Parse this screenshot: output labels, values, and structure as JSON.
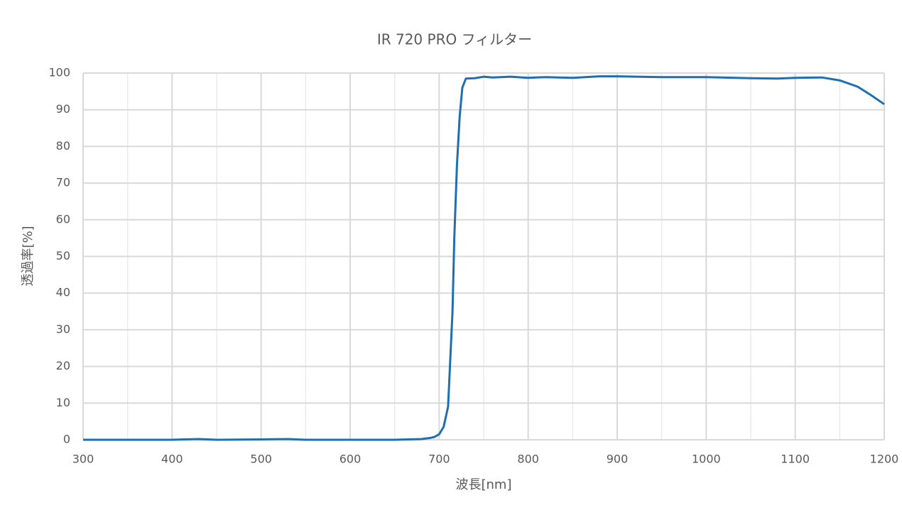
{
  "chart_data": {
    "type": "line",
    "title": "IR 720 PRO フィルター",
    "x_label": "波長[nm]",
    "y_label": "透過率[%]",
    "xlim": [
      300,
      1200
    ],
    "ylim": [
      0,
      100
    ],
    "xticks": [
      300,
      400,
      500,
      600,
      700,
      800,
      900,
      1000,
      1100,
      1200
    ],
    "xminorticks": [
      350,
      450,
      550,
      650,
      750,
      850,
      950,
      1050,
      1150
    ],
    "yticks": [
      0,
      10,
      20,
      30,
      40,
      50,
      60,
      70,
      80,
      90,
      100
    ],
    "grid": true,
    "series": [
      {
        "name": "IR 720 PRO",
        "color": "#1f6fb0",
        "x": [
          300,
          350,
          400,
          430,
          450,
          500,
          530,
          550,
          600,
          650,
          680,
          690,
          695,
          700,
          705,
          710,
          715,
          717,
          720,
          723,
          726,
          730,
          740,
          750,
          760,
          780,
          800,
          820,
          850,
          880,
          900,
          950,
          1000,
          1050,
          1080,
          1100,
          1130,
          1150,
          1170,
          1185,
          1200
        ],
        "values": [
          0,
          0,
          0,
          0.2,
          0,
          0.1,
          0.2,
          0,
          0,
          0,
          0.2,
          0.5,
          0.8,
          1.5,
          3.5,
          9,
          35,
          55,
          75,
          88,
          96,
          98.5,
          98.6,
          99,
          98.8,
          99,
          98.7,
          98.9,
          98.7,
          99.1,
          99.1,
          98.9,
          98.9,
          98.6,
          98.5,
          98.7,
          98.8,
          98,
          96.3,
          94,
          91.5
        ]
      }
    ]
  }
}
